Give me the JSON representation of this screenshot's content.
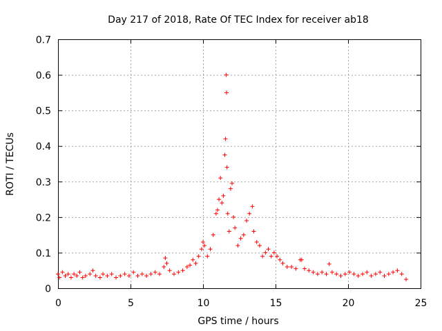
{
  "chart_data": {
    "type": "scatter",
    "title": "Day 217 of 2018, Rate Of TEC Index for receiver ab18",
    "xlabel": "GPS time / hours",
    "ylabel": "ROTI / TECUs",
    "xlim": [
      0,
      25
    ],
    "ylim": [
      0,
      0.7
    ],
    "x_ticks": [
      "0",
      "5",
      "10",
      "15",
      "20",
      "25"
    ],
    "y_ticks": [
      "0",
      "0.1",
      "0.2",
      "0.3",
      "0.4",
      "0.5",
      "0.6",
      "0.7"
    ],
    "grid": true,
    "marker": "plus",
    "color": "#ff0000",
    "series": [
      {
        "x": [
          0.0,
          0.1,
          0.3,
          0.5,
          0.7,
          0.9,
          1.1,
          1.3,
          1.5,
          1.7,
          1.9,
          2.2,
          2.4,
          2.6,
          2.9,
          3.1,
          3.4,
          3.7,
          4.0,
          4.3,
          4.6,
          4.9,
          5.2,
          5.5,
          5.8,
          6.1,
          6.4,
          6.7,
          7.0,
          7.3,
          7.4,
          7.5,
          7.7,
          8.0,
          8.3,
          8.6,
          8.9,
          9.1,
          9.3,
          9.5,
          9.7,
          9.9,
          10.0,
          10.1,
          10.3,
          10.5,
          10.7,
          10.9,
          11.0,
          11.1,
          11.2,
          11.3,
          11.4,
          11.5,
          11.55,
          11.6,
          11.62,
          11.65,
          11.7,
          11.8,
          11.9,
          12.0,
          12.1,
          12.2,
          12.4,
          12.6,
          12.8,
          13.0,
          13.2,
          13.4,
          13.5,
          13.7,
          13.9,
          14.1,
          14.3,
          14.5,
          14.7,
          14.9,
          15.1,
          15.3,
          15.5,
          15.8,
          16.1,
          16.4,
          16.7,
          16.8,
          17.0,
          17.3,
          17.6,
          17.9,
          18.2,
          18.5,
          18.7,
          18.9,
          19.2,
          19.5,
          19.8,
          20.1,
          20.4,
          20.7,
          21.0,
          21.3,
          21.6,
          21.9,
          22.2,
          22.5,
          22.8,
          23.1,
          23.4,
          23.7,
          24.0
        ],
        "y": [
          0.04,
          0.03,
          0.045,
          0.035,
          0.04,
          0.03,
          0.04,
          0.035,
          0.045,
          0.03,
          0.035,
          0.04,
          0.05,
          0.035,
          0.03,
          0.04,
          0.035,
          0.04,
          0.03,
          0.035,
          0.04,
          0.035,
          0.045,
          0.035,
          0.04,
          0.035,
          0.04,
          0.045,
          0.04,
          0.06,
          0.085,
          0.07,
          0.05,
          0.04,
          0.045,
          0.05,
          0.06,
          0.065,
          0.08,
          0.07,
          0.09,
          0.11,
          0.13,
          0.12,
          0.09,
          0.11,
          0.15,
          0.21,
          0.22,
          0.25,
          0.31,
          0.24,
          0.26,
          0.375,
          0.42,
          0.6,
          0.55,
          0.34,
          0.21,
          0.16,
          0.28,
          0.295,
          0.2,
          0.17,
          0.12,
          0.14,
          0.15,
          0.19,
          0.21,
          0.23,
          0.16,
          0.13,
          0.12,
          0.09,
          0.1,
          0.11,
          0.09,
          0.1,
          0.09,
          0.08,
          0.07,
          0.06,
          0.06,
          0.055,
          0.08,
          0.08,
          0.055,
          0.05,
          0.045,
          0.04,
          0.045,
          0.04,
          0.068,
          0.045,
          0.04,
          0.035,
          0.04,
          0.045,
          0.04,
          0.035,
          0.04,
          0.045,
          0.035,
          0.04,
          0.045,
          0.035,
          0.04,
          0.045,
          0.05,
          0.04,
          0.025
        ]
      }
    ]
  }
}
